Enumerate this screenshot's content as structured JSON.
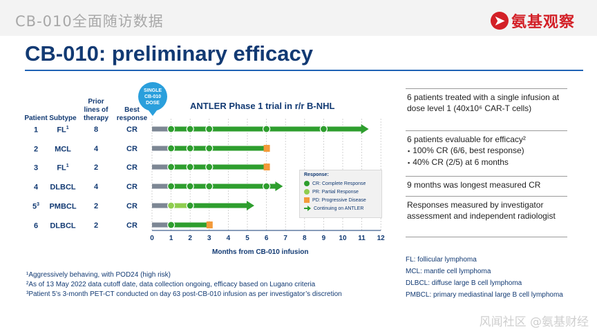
{
  "header": {
    "cn_title": "CB-010全面随访数据",
    "brand": "氨基观察"
  },
  "slide_title": "CB-010: preliminary efficacy",
  "dose_badge": [
    "SINGLE",
    "CB-010",
    "DOSE"
  ],
  "columns": {
    "patient": "Patient",
    "subtype": "Subtype",
    "prior": [
      "Prior",
      "lines of",
      "therapy"
    ],
    "best": [
      "Best",
      "response"
    ]
  },
  "patients": [
    {
      "id": "1",
      "sup": "",
      "subtype": "FL",
      "subtype_sup": "1",
      "prior": "8",
      "best": "CR"
    },
    {
      "id": "2",
      "sup": "",
      "subtype": "MCL",
      "subtype_sup": "",
      "prior": "4",
      "best": "CR"
    },
    {
      "id": "3",
      "sup": "",
      "subtype": "FL",
      "subtype_sup": "1",
      "prior": "2",
      "best": "CR"
    },
    {
      "id": "4",
      "sup": "",
      "subtype": "DLBCL",
      "subtype_sup": "",
      "prior": "4",
      "best": "CR"
    },
    {
      "id": "5",
      "sup": "3",
      "subtype": "PMBCL",
      "subtype_sup": "",
      "prior": "2",
      "best": "CR"
    },
    {
      "id": "6",
      "sup": "",
      "subtype": "DLBCL",
      "subtype_sup": "",
      "prior": "2",
      "best": "CR"
    }
  ],
  "chart_data": {
    "type": "swimmer",
    "title": "ANTLER Phase 1 trial in r/r B-NHL",
    "xlabel": "Months from CB-010 infusion",
    "xlim": [
      0,
      12
    ],
    "xticks": [
      0,
      1,
      2,
      3,
      4,
      5,
      6,
      7,
      8,
      9,
      10,
      11,
      12
    ],
    "legend_title": "Response:",
    "legend": [
      {
        "key": "cr",
        "label": "CR: Complete Response",
        "color": "#2e9e2e"
      },
      {
        "key": "pr",
        "label": "PR: Partial Response",
        "color": "#8fcd4f"
      },
      {
        "key": "pd",
        "label": "PD: Progressive Disease",
        "color": "#f39a3a"
      },
      {
        "key": "cont",
        "label": "Continuing on ANTLER",
        "color": "#2e9e2e"
      }
    ],
    "series": [
      {
        "patient": "1",
        "pre_response_end": 1,
        "end": 11,
        "continuing": true,
        "pd_at": null,
        "assessments": [
          {
            "month": 1,
            "response": "CR"
          },
          {
            "month": 2,
            "response": "CR"
          },
          {
            "month": 3,
            "response": "CR"
          },
          {
            "month": 6,
            "response": "CR"
          },
          {
            "month": 9,
            "response": "CR"
          }
        ]
      },
      {
        "patient": "2",
        "pre_response_end": 1,
        "end": 6,
        "continuing": false,
        "pd_at": 6,
        "assessments": [
          {
            "month": 1,
            "response": "CR"
          },
          {
            "month": 2,
            "response": "CR"
          },
          {
            "month": 3,
            "response": "CR"
          }
        ]
      },
      {
        "patient": "3",
        "pre_response_end": 1,
        "end": 6,
        "continuing": false,
        "pd_at": 6,
        "assessments": [
          {
            "month": 1,
            "response": "CR"
          },
          {
            "month": 2,
            "response": "CR"
          },
          {
            "month": 3,
            "response": "CR"
          }
        ]
      },
      {
        "patient": "4",
        "pre_response_end": 1,
        "end": 6.5,
        "continuing": true,
        "pd_at": null,
        "assessments": [
          {
            "month": 1,
            "response": "CR"
          },
          {
            "month": 2,
            "response": "CR"
          },
          {
            "month": 3,
            "response": "CR"
          },
          {
            "month": 6,
            "response": "CR"
          }
        ]
      },
      {
        "patient": "5",
        "pre_response_end": 1,
        "end": 5,
        "continuing": true,
        "pd_at": null,
        "assessments": [
          {
            "month": 1,
            "response": "PR"
          },
          {
            "month": 2,
            "response": "CR"
          }
        ]
      },
      {
        "patient": "6",
        "pre_response_end": 1,
        "end": 3,
        "continuing": false,
        "pd_at": 3,
        "assessments": [
          {
            "month": 1,
            "response": "CR"
          }
        ]
      }
    ]
  },
  "summary": [
    {
      "text": "6 patients treated with a single infusion at dose level 1 (40x10⁶ CAR-T cells)",
      "bullets": []
    },
    {
      "text": "6 patients evaluable for efficacy²",
      "bullets": [
        "100% CR (6/6, best response)",
        "40% CR (2/5) at 6 months"
      ]
    },
    {
      "text": "9 months was longest measured CR",
      "bullets": []
    },
    {
      "text": "Responses measured by investigator assessment and independent radiologist",
      "bullets": []
    }
  ],
  "footnotes": [
    "¹Aggressively behaving, with POD24 (high risk)",
    "²As of 13 May 2022 data cutoff date, data collection ongoing, efficacy based on Lugano criteria",
    "³Patient 5’s 3-month PET-CT conducted on day 63 post-CB-010 infusion as per investigator’s discretion"
  ],
  "abbreviations": [
    "FL: follicular lymphoma",
    "MCL: mantle cell lymphoma",
    "DLBCL: diffuse large B cell lymphoma",
    "PMBCL: primary mediastinal large B cell lymphoma"
  ],
  "watermark": "风闻社区 @氨基财经",
  "colors": {
    "navy": "#123a73",
    "green": "#2e9e2e",
    "light_green": "#8fcd4f",
    "orange": "#f39a3a",
    "gray_bar": "#7d8794",
    "badge_blue": "#2a9fdc",
    "brand_red": "#d32027"
  }
}
